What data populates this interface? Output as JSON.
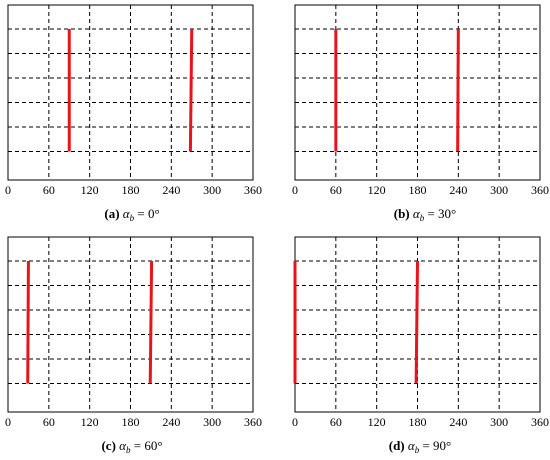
{
  "chart_data": [
    {
      "type": "line",
      "caption": {
        "panel": "(a)",
        "symbol": "α",
        "subscript": "b",
        "eq": " = 0°"
      },
      "xlim": [
        0,
        360
      ],
      "xticks": [
        "0",
        "60",
        "120",
        "180",
        "240",
        "300",
        "360"
      ],
      "grid": true,
      "line_color": "#e8141b",
      "series": [
        {
          "values": [
            [
              90,
              1
            ],
            [
              90,
              6
            ]
          ]
        },
        {
          "values": [
            [
              270,
              1
            ],
            [
              268,
              6
            ]
          ]
        }
      ]
    },
    {
      "type": "line",
      "caption": {
        "panel": "(b)",
        "symbol": "α",
        "subscript": "b",
        "eq": " = 30°"
      },
      "xlim": [
        0,
        360
      ],
      "xticks": [
        "0",
        "60",
        "120",
        "180",
        "240",
        "300",
        "360"
      ],
      "grid": true,
      "line_color": "#e8141b",
      "series": [
        {
          "values": [
            [
              60,
              1
            ],
            [
              60,
              6
            ]
          ]
        },
        {
          "values": [
            [
              240,
              1
            ],
            [
              239,
              6
            ]
          ]
        }
      ]
    },
    {
      "type": "line",
      "caption": {
        "panel": "(c)",
        "symbol": "α",
        "subscript": "b",
        "eq": " = 60°"
      },
      "xlim": [
        0,
        360
      ],
      "xticks": [
        "0",
        "60",
        "120",
        "180",
        "240",
        "300",
        "360"
      ],
      "grid": true,
      "line_color": "#e8141b",
      "series": [
        {
          "values": [
            [
              30,
              1
            ],
            [
              29,
              6
            ]
          ]
        },
        {
          "values": [
            [
              211,
              1
            ],
            [
              209,
              6
            ]
          ]
        }
      ]
    },
    {
      "type": "line",
      "caption": {
        "panel": "(d)",
        "symbol": "α",
        "subscript": "b",
        "eq": " = 90°"
      },
      "xlim": [
        0,
        360
      ],
      "xticks": [
        "0",
        "60",
        "120",
        "180",
        "240",
        "300",
        "360"
      ],
      "grid": true,
      "line_color": "#e8141b",
      "series": [
        {
          "values": [
            [
              0,
              1
            ],
            [
              0,
              6
            ]
          ]
        },
        {
          "values": [
            [
              180,
              1
            ],
            [
              178,
              6
            ]
          ]
        }
      ]
    }
  ]
}
